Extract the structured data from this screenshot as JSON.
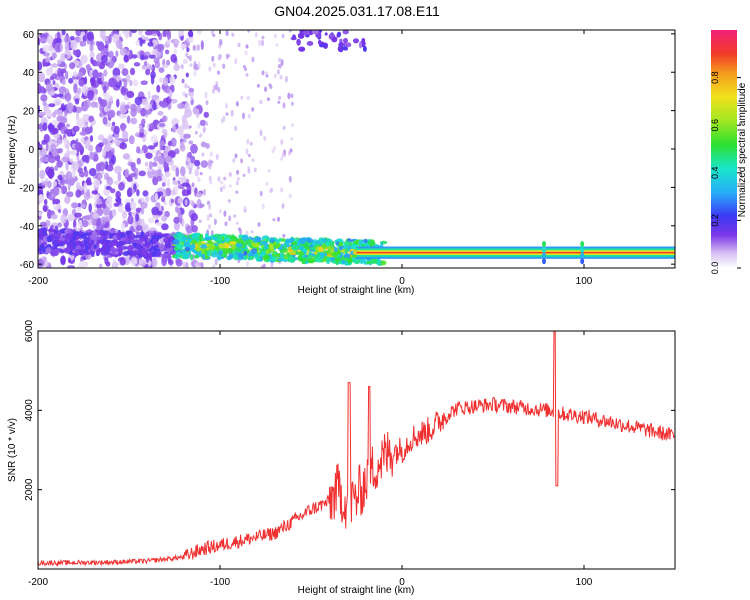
{
  "title": "GN04.2025.031.17.08.E11",
  "chart_data": [
    {
      "type": "heatmap",
      "xlabel": "Height of straight line (km)",
      "ylabel": "Frequency (Hz)",
      "xlim": [
        -200,
        150
      ],
      "ylim": [
        -62,
        62
      ],
      "xticks": [
        -200,
        -100,
        0,
        100
      ],
      "yticks": [
        -60,
        -40,
        -20,
        0,
        20,
        40,
        60
      ],
      "colorbar": {
        "label": "Normalized spectral amplitude",
        "range": [
          0,
          1
        ],
        "ticks": [
          0.0,
          0.2,
          0.4,
          0.6,
          0.8
        ]
      },
      "features": [
        {
          "name": "low-frequency band",
          "freq_hz": -54,
          "x_from": -125,
          "x_to": 150,
          "amplitude": 0.85
        },
        {
          "name": "broadband noise",
          "x_from": -200,
          "x_to": -120,
          "amplitude": 0.15
        }
      ]
    },
    {
      "type": "line",
      "xlabel": "Height of straight line (km)",
      "ylabel": "SNR (10 * v/v)",
      "xlim": [
        -200,
        150
      ],
      "ylim": [
        0,
        6000
      ],
      "xticks": [
        -200,
        -100,
        0,
        100
      ],
      "yticks": [
        2000,
        4000,
        6000
      ],
      "color": "#f03030",
      "points": [
        [
          -200,
          150
        ],
        [
          -180,
          160
        ],
        [
          -160,
          170
        ],
        [
          -140,
          200
        ],
        [
          -120,
          300
        ],
        [
          -110,
          500
        ],
        [
          -100,
          600
        ],
        [
          -90,
          700
        ],
        [
          -80,
          800
        ],
        [
          -70,
          900
        ],
        [
          -60,
          1200
        ],
        [
          -50,
          1500
        ],
        [
          -40,
          1700
        ],
        [
          -35,
          2000
        ],
        [
          -30,
          1600
        ],
        [
          -25,
          1800
        ],
        [
          -20,
          2200
        ],
        [
          -15,
          2600
        ],
        [
          -10,
          2800
        ],
        [
          -5,
          3000
        ],
        [
          0,
          3000
        ],
        [
          5,
          3300
        ],
        [
          10,
          3400
        ],
        [
          15,
          3500
        ],
        [
          20,
          3700
        ],
        [
          25,
          3900
        ],
        [
          30,
          4050
        ],
        [
          40,
          4100
        ],
        [
          50,
          4150
        ],
        [
          60,
          4100
        ],
        [
          70,
          4050
        ],
        [
          80,
          4000
        ],
        [
          85,
          3950
        ],
        [
          90,
          3900
        ],
        [
          100,
          3850
        ],
        [
          110,
          3750
        ],
        [
          120,
          3650
        ],
        [
          130,
          3550
        ],
        [
          140,
          3450
        ],
        [
          150,
          3350
        ]
      ],
      "spikes": [
        {
          "x": -29,
          "y": 4700
        },
        {
          "x": -18,
          "y": 4600
        },
        {
          "x": 84,
          "y": 6000
        },
        {
          "x": 85,
          "y": 2100
        }
      ]
    }
  ]
}
